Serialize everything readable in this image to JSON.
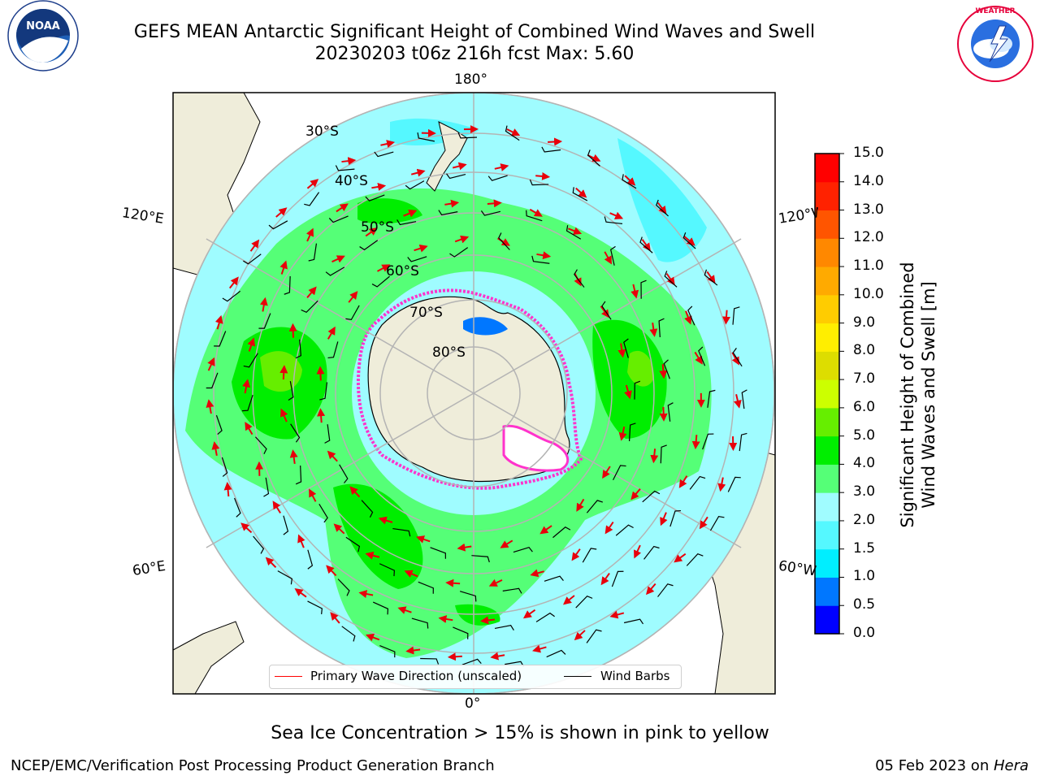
{
  "title": {
    "line1": "GEFS MEAN Antarctic Significant Height of Combined Wind Waves and Swell",
    "line2": "20230203 t06z 216h fcst   Max: 5.60"
  },
  "logos": {
    "left": "NOAA",
    "right": "NATIONAL WEATHER SERVICE"
  },
  "map": {
    "projection": "south-polar-stereographic",
    "meridian_labels": {
      "top": "180°",
      "bottom": "0°",
      "left_upper": "120°E",
      "left_lower": "60°E",
      "right_upper": "120°W",
      "right_lower": "60°W"
    },
    "parallel_labels": [
      "30°S",
      "40°S",
      "50°S",
      "60°S",
      "70°S",
      "80°S"
    ],
    "colors": {
      "land": "#efedda",
      "ocean_base": "#9ffcff",
      "grid": "#b4b4b4",
      "arrow": "#e8000b",
      "barb": "#000000",
      "ice": "#ff33cc"
    }
  },
  "legend": {
    "wave": "Primary Wave Direction (unscaled)",
    "barb": "Wind Barbs",
    "wave_color": "#ff0000",
    "barb_color": "#000000"
  },
  "colorbar": {
    "label": "Significant Height of Combined Wind Waves and Swell [m]",
    "label_line1": "Significant Height of Combined",
    "label_line2": "Wind Waves and Swell [m]",
    "ticks": [
      "0.0",
      "0.5",
      "1.0",
      "1.5",
      "2.0",
      "3.0",
      "4.0",
      "5.0",
      "6.0",
      "7.0",
      "8.0",
      "9.0",
      "10.0",
      "11.0",
      "12.0",
      "13.0",
      "14.0",
      "15.0"
    ],
    "colors": [
      "#0000ff",
      "#0077ff",
      "#00eeff",
      "#55f8ff",
      "#a0fcff",
      "#55ff77",
      "#00ee00",
      "#66ee00",
      "#ccff00",
      "#dddd00",
      "#ffee00",
      "#ffcc00",
      "#ffaa00",
      "#ff8800",
      "#ff5500",
      "#ff2200",
      "#ff0000"
    ]
  },
  "subnote": "Sea Ice Concentration > 15% is shown in pink to yellow",
  "footer": {
    "left": "NCEP/EMC/Verification Post Processing Product Generation Branch",
    "right_date": "05 Feb 2023 on ",
    "right_host": "Hera"
  }
}
